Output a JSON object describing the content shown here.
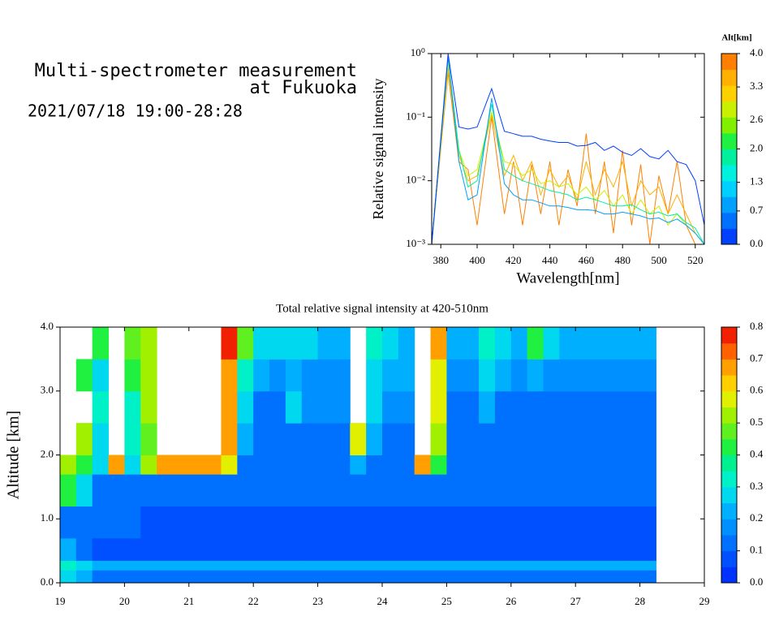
{
  "header": {
    "title_lines": [
      "Multi-spectrometer measurement",
      "at Fukuoka"
    ],
    "period": "2021/07/18 19:00-28:28"
  },
  "chart_data": [
    {
      "type": "line",
      "xlabel": "Wavelength[nm]",
      "ylabel": "Relative signal intensity",
      "x": [
        375,
        384,
        390,
        395,
        400,
        408,
        415,
        420,
        425,
        430,
        435,
        440,
        445,
        450,
        455,
        460,
        465,
        470,
        475,
        480,
        485,
        490,
        495,
        500,
        505,
        510,
        515,
        520,
        525
      ],
      "xlim": [
        375,
        525
      ],
      "xticks": [
        380,
        400,
        420,
        440,
        460,
        480,
        500,
        520
      ],
      "ylim": [
        0.001,
        1
      ],
      "yscale": "log",
      "yticks": [
        {
          "value": 0.001,
          "label": "10⁻³"
        },
        {
          "value": 0.01,
          "label": "10⁻²"
        },
        {
          "value": 0.1,
          "label": "10⁻¹"
        },
        {
          "value": 1,
          "label": "10⁰"
        }
      ],
      "series": [
        {
          "color": "#ff8000",
          "values": [
            0.001,
            0.5,
            0.02,
            0.015,
            0.002,
            0.1,
            0.003,
            0.02,
            0.002,
            0.018,
            0.003,
            0.02,
            0.002,
            0.015,
            0.004,
            0.055,
            0.003,
            0.02,
            0.0015,
            0.03,
            0.002,
            0.018,
            0.001,
            0.012,
            0.003,
            0.02,
            0.002,
            0.001,
            0.001
          ]
        },
        {
          "color": "#ffb000",
          "values": [
            0.001,
            0.6,
            0.025,
            0.01,
            0.012,
            0.11,
            0.012,
            0.025,
            0.01,
            0.02,
            0.006,
            0.015,
            0.008,
            0.012,
            0.005,
            0.02,
            0.006,
            0.015,
            0.008,
            0.02,
            0.004,
            0.01,
            0.006,
            0.008,
            0.003,
            0.006,
            0.003,
            0.0015,
            0.001
          ]
        },
        {
          "color": "#c8f000",
          "values": [
            0.001,
            0.7,
            0.03,
            0.012,
            0.015,
            0.12,
            0.02,
            0.018,
            0.012,
            0.015,
            0.009,
            0.01,
            0.008,
            0.009,
            0.006,
            0.008,
            0.005,
            0.007,
            0.004,
            0.006,
            0.003,
            0.005,
            0.003,
            0.004,
            0.002,
            0.003,
            0.002,
            0.0015,
            0.001
          ]
        },
        {
          "color": "#00f0a0",
          "values": [
            0.001,
            0.85,
            0.03,
            0.008,
            0.01,
            0.16,
            0.015,
            0.012,
            0.01,
            0.009,
            0.008,
            0.007,
            0.0065,
            0.006,
            0.005,
            0.0055,
            0.005,
            0.0045,
            0.004,
            0.004,
            0.0042,
            0.0035,
            0.003,
            0.0032,
            0.0028,
            0.003,
            0.0022,
            0.0018,
            0.001
          ]
        },
        {
          "color": "#00a0ff",
          "values": [
            0.001,
            0.9,
            0.02,
            0.005,
            0.006,
            0.2,
            0.009,
            0.006,
            0.005,
            0.005,
            0.0045,
            0.004,
            0.004,
            0.0038,
            0.0035,
            0.0035,
            0.0034,
            0.003,
            0.003,
            0.0032,
            0.003,
            0.0028,
            0.0025,
            0.0026,
            0.0022,
            0.0025,
            0.002,
            0.0015,
            0.001
          ]
        },
        {
          "color": "#0040ff",
          "values": [
            0.001,
            1,
            0.07,
            0.065,
            0.07,
            0.28,
            0.06,
            0.055,
            0.05,
            0.05,
            0.045,
            0.042,
            0.04,
            0.04,
            0.035,
            0.036,
            0.04,
            0.03,
            0.035,
            0.028,
            0.025,
            0.032,
            0.024,
            0.022,
            0.03,
            0.02,
            0.018,
            0.01,
            0.002
          ]
        }
      ],
      "colorbar": {
        "title": "Alt[km]",
        "lim": [
          0,
          4
        ],
        "ticks": [
          {
            "value": 0,
            "label": "0.0"
          },
          0.7,
          1.3,
          {
            "value": 2,
            "label": "2.0"
          },
          2.6,
          3.3,
          {
            "value": 4,
            "label": "4.0"
          }
        ],
        "colors": [
          "#0040ff",
          "#0070ff",
          "#00a0ff",
          "#00d0ff",
          "#00f0e0",
          "#00f0a0",
          "#20f040",
          "#80f000",
          "#c8f000",
          "#ffd000",
          "#ffb000",
          "#ff8000"
        ]
      }
    },
    {
      "type": "heatmap",
      "title": "Total relative signal intensity at 420-510nm",
      "ylabel": "Altitude [km]",
      "xlim": [
        19,
        29
      ],
      "xticks": [
        19,
        20,
        21,
        22,
        23,
        24,
        25,
        26,
        27,
        28,
        29
      ],
      "ylim": [
        0,
        4
      ],
      "yticks": [
        {
          "value": 0,
          "label": "0.0"
        },
        {
          "value": 1,
          "label": "1.0"
        },
        {
          "value": 2,
          "label": "2.0"
        },
        {
          "value": 3,
          "label": "3.0"
        },
        {
          "value": 4,
          "label": "4.0"
        }
      ],
      "x_edges": [
        19,
        19.25,
        19.5,
        19.75,
        20,
        20.25,
        20.5,
        20.75,
        21,
        21.25,
        21.5,
        21.75,
        22,
        22.25,
        22.5,
        22.75,
        23,
        23.25,
        23.5,
        23.75,
        24,
        24.25,
        24.5,
        24.75,
        25,
        25.25,
        25.5,
        25.75,
        26,
        26.25,
        26.5,
        26.75,
        27,
        27.25,
        27.5,
        27.75,
        28,
        28.25
      ],
      "y_edges": [
        0,
        0.2,
        0.35,
        0.7,
        1.2,
        1.7,
        2,
        2.5,
        3,
        3.5,
        4
      ],
      "z": [
        [
          0.3,
          0.2,
          0.12,
          0.12,
          0.12,
          0.12,
          0.12,
          0.12,
          0.12,
          0.12,
          0.12,
          0.12,
          0.12,
          0.12,
          0.12,
          0.12,
          0.12,
          0.12,
          0.12,
          0.12,
          0.12,
          0.12,
          0.12,
          0.12,
          0.12,
          0.12,
          0.12,
          0.12,
          0.12,
          0.12,
          0.12,
          0.12,
          0.12,
          0.12,
          0.12,
          0.12,
          0.12
        ],
        [
          0.35,
          0.25,
          0.22,
          0.22,
          0.22,
          0.22,
          0.22,
          0.22,
          0.22,
          0.22,
          0.22,
          0.22,
          0.22,
          0.22,
          0.22,
          0.22,
          0.22,
          0.22,
          0.22,
          0.22,
          0.22,
          0.22,
          0.22,
          0.22,
          0.22,
          0.22,
          0.22,
          0.22,
          0.22,
          0.22,
          0.22,
          0.22,
          0.22,
          0.22,
          0.22,
          0.22,
          0.22
        ],
        [
          0.2,
          0.12,
          0.08,
          0.08,
          0.08,
          0.08,
          0.08,
          0.08,
          0.08,
          0.08,
          0.08,
          0.08,
          0.08,
          0.08,
          0.08,
          0.08,
          0.08,
          0.08,
          0.08,
          0.08,
          0.08,
          0.08,
          0.08,
          0.08,
          0.08,
          0.08,
          0.08,
          0.08,
          0.08,
          0.08,
          0.08,
          0.08,
          0.08,
          0.08,
          0.08,
          0.08,
          0.08
        ],
        [
          0.15,
          0.14,
          0.12,
          0.1,
          0.1,
          0.08,
          0.08,
          0.08,
          0.08,
          0.08,
          0.08,
          0.08,
          0.08,
          0.08,
          0.08,
          0.08,
          0.08,
          0.08,
          0.08,
          0.08,
          0.08,
          0.08,
          0.08,
          0.08,
          0.08,
          0.08,
          0.08,
          0.08,
          0.08,
          0.08,
          0.08,
          0.08,
          0.08,
          0.08,
          0.08,
          0.08,
          0.08
        ],
        [
          0.4,
          0.25,
          0.15,
          0.12,
          0.11,
          0.1,
          0.1,
          0.1,
          0.1,
          0.1,
          0.1,
          0.1,
          0.1,
          0.1,
          0.1,
          0.1,
          0.1,
          0.1,
          0.1,
          0.1,
          0.1,
          0.1,
          0.1,
          0.1,
          0.1,
          0.1,
          0.1,
          0.1,
          0.1,
          0.1,
          0.1,
          0.1,
          0.1,
          0.1,
          0.1,
          0.1,
          0.1
        ],
        [
          0.5,
          0.4,
          0.3,
          0.7,
          0.3,
          0.5,
          0.7,
          0.7,
          0.7,
          0.7,
          0.6,
          0.15,
          0.12,
          0.12,
          0.12,
          0.12,
          0.12,
          0.12,
          0.2,
          0.14,
          0.12,
          0.12,
          0.7,
          0.4,
          0.11,
          0.11,
          0.11,
          0.11,
          0.11,
          0.11,
          0.11,
          0.11,
          0.11,
          0.11,
          0.11,
          0.11,
          0.11
        ],
        [
          null,
          0.5,
          0.3,
          null,
          0.35,
          0.45,
          null,
          null,
          null,
          null,
          0.65,
          0.2,
          0.15,
          0.15,
          0.15,
          0.15,
          0.15,
          0.15,
          0.55,
          0.2,
          0.15,
          0.15,
          null,
          0.5,
          0.14,
          0.14,
          0.14,
          0.14,
          0.14,
          0.14,
          0.14,
          0.14,
          0.14,
          0.14,
          0.14,
          0.14,
          0.14
        ],
        [
          null,
          null,
          0.35,
          null,
          0.35,
          0.5,
          null,
          null,
          null,
          null,
          0.7,
          0.25,
          0.15,
          0.15,
          0.25,
          0.16,
          0.16,
          0.16,
          null,
          0.25,
          0.16,
          0.18,
          null,
          0.55,
          0.15,
          0.15,
          0.22,
          0.15,
          0.15,
          0.15,
          0.15,
          0.15,
          0.15,
          0.15,
          0.15,
          0.15,
          0.15
        ],
        [
          null,
          0.4,
          0.3,
          null,
          0.4,
          0.5,
          null,
          null,
          null,
          null,
          0.7,
          0.35,
          0.2,
          0.18,
          0.22,
          0.17,
          0.17,
          0.17,
          null,
          0.3,
          0.2,
          0.2,
          null,
          0.6,
          0.17,
          0.17,
          0.28,
          0.22,
          0.17,
          0.2,
          0.16,
          0.16,
          0.16,
          0.16,
          0.16,
          0.16,
          0.16
        ],
        [
          null,
          null,
          0.4,
          null,
          0.45,
          0.5,
          null,
          null,
          null,
          null,
          0.75,
          0.45,
          0.3,
          0.25,
          0.28,
          0.25,
          0.22,
          0.2,
          null,
          0.35,
          0.25,
          0.22,
          null,
          0.65,
          0.22,
          0.2,
          0.35,
          0.3,
          0.22,
          0.4,
          0.25,
          0.2,
          0.2,
          0.2,
          0.2,
          0.2,
          0.2
        ]
      ],
      "colorbar": {
        "lim": [
          0,
          0.8
        ],
        "ticks": [
          {
            "value": 0,
            "label": "0.0"
          },
          0.1,
          0.2,
          0.3,
          0.4,
          0.5,
          0.6,
          0.7,
          0.8
        ],
        "colors": [
          "#0032ff",
          "#0050ff",
          "#0070ff",
          "#0090ff",
          "#00b0ff",
          "#00d8f0",
          "#00f0c8",
          "#00f090",
          "#20f040",
          "#60f020",
          "#a0f000",
          "#e0f000",
          "#ffd000",
          "#ffa000",
          "#ff6000",
          "#f02000"
        ]
      }
    }
  ]
}
